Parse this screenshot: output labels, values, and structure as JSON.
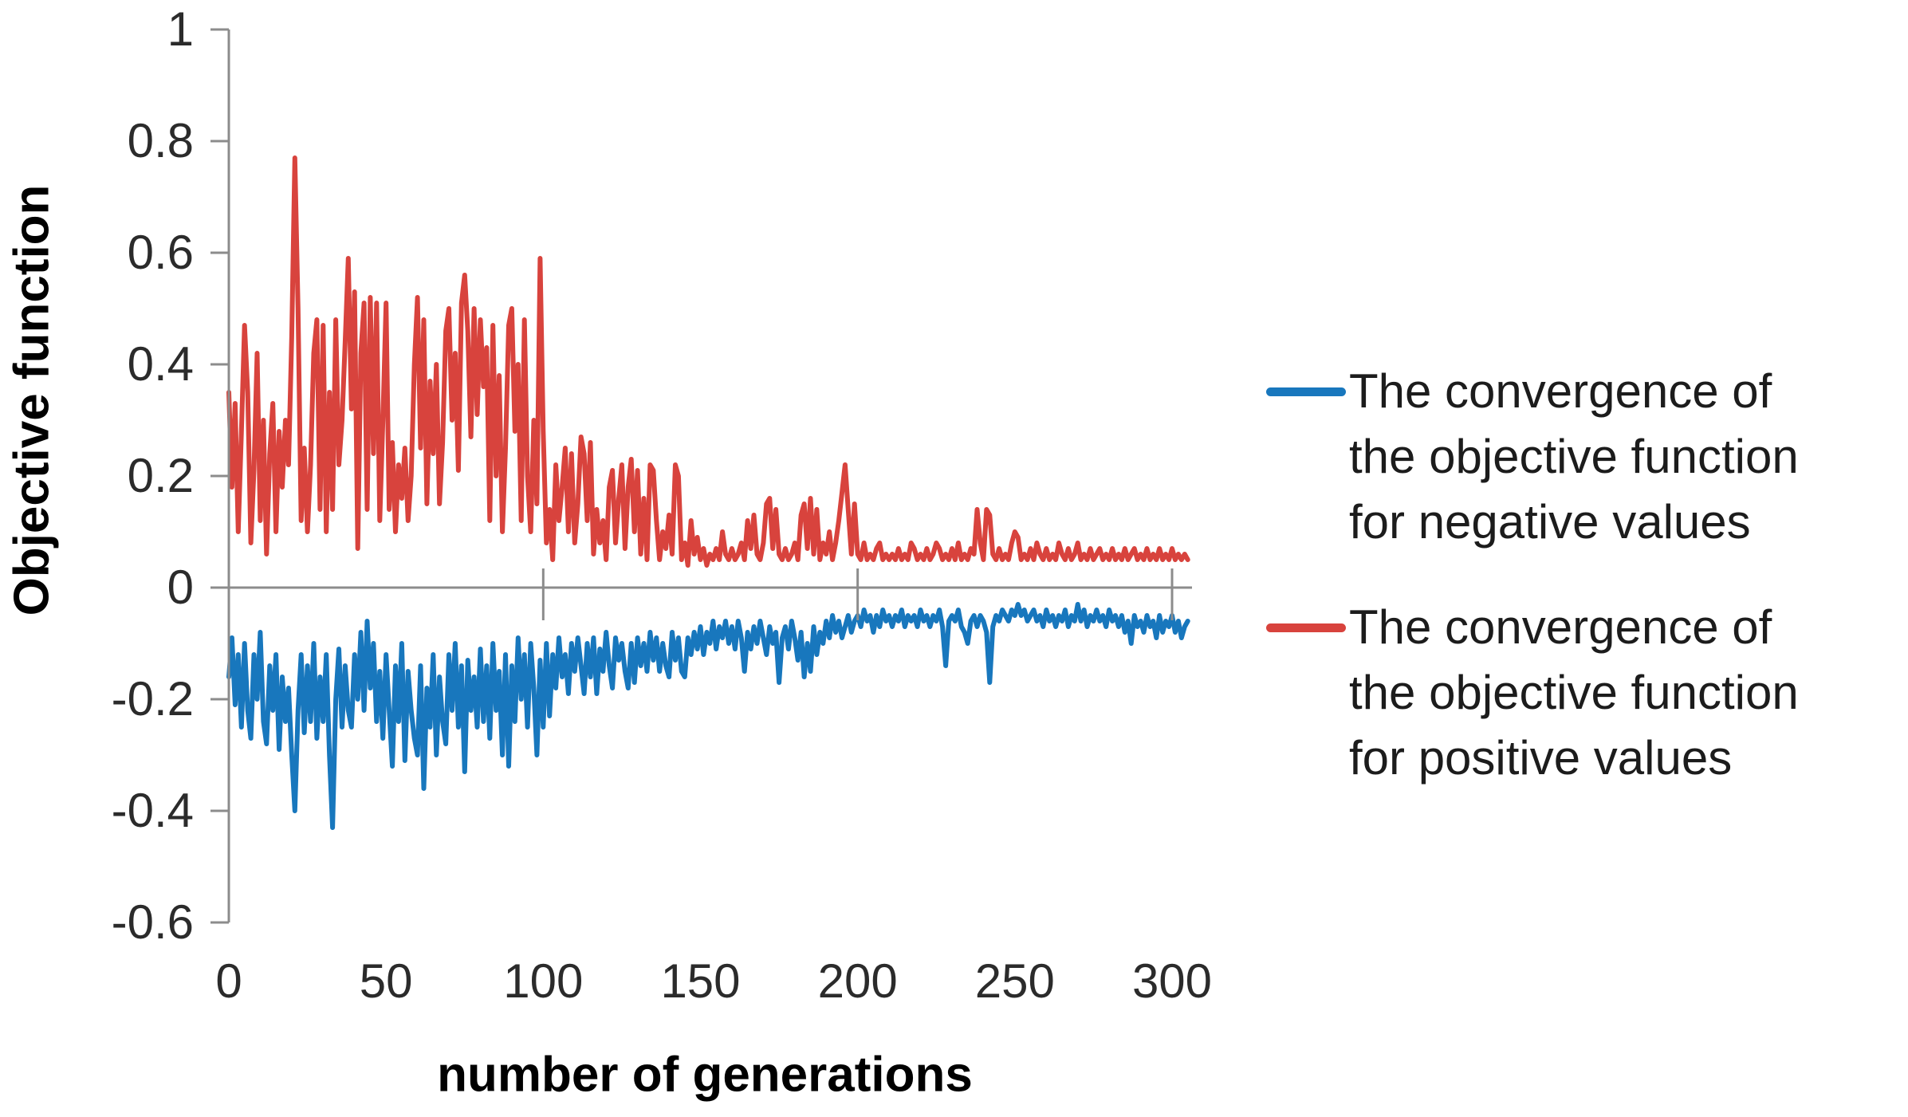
{
  "chart_data": {
    "type": "line",
    "title": "",
    "xlabel": "number of generations",
    "ylabel": "Objective function",
    "xlim": [
      0,
      305
    ],
    "ylim": [
      -0.6,
      1
    ],
    "x_start": 0,
    "x_step": 1,
    "x_ticks": [
      0,
      50,
      100,
      150,
      200,
      250,
      300
    ],
    "y_ticks": [
      1,
      0.8,
      0.6,
      0.4,
      0.2,
      0,
      -0.2,
      -0.4,
      -0.6
    ],
    "grid": false,
    "legend_position": "right",
    "series": [
      {
        "name": "The convergence of the objective function for negative values",
        "color": "#1877BD",
        "values": [
          -0.16,
          -0.09,
          -0.21,
          -0.12,
          -0.25,
          -0.1,
          -0.22,
          -0.27,
          -0.12,
          -0.2,
          -0.08,
          -0.24,
          -0.28,
          -0.14,
          -0.22,
          -0.12,
          -0.29,
          -0.16,
          -0.24,
          -0.18,
          -0.3,
          -0.4,
          -0.22,
          -0.12,
          -0.26,
          -0.14,
          -0.24,
          -0.1,
          -0.27,
          -0.16,
          -0.24,
          -0.12,
          -0.3,
          -0.43,
          -0.2,
          -0.11,
          -0.25,
          -0.14,
          -0.22,
          -0.25,
          -0.12,
          -0.2,
          -0.08,
          -0.22,
          -0.06,
          -0.18,
          -0.1,
          -0.24,
          -0.15,
          -0.27,
          -0.12,
          -0.22,
          -0.32,
          -0.14,
          -0.24,
          -0.1,
          -0.31,
          -0.15,
          -0.22,
          -0.27,
          -0.3,
          -0.14,
          -0.36,
          -0.18,
          -0.25,
          -0.12,
          -0.3,
          -0.16,
          -0.24,
          -0.28,
          -0.12,
          -0.22,
          -0.1,
          -0.25,
          -0.14,
          -0.33,
          -0.13,
          -0.22,
          -0.16,
          -0.25,
          -0.11,
          -0.24,
          -0.14,
          -0.27,
          -0.1,
          -0.22,
          -0.15,
          -0.3,
          -0.12,
          -0.32,
          -0.14,
          -0.24,
          -0.09,
          -0.2,
          -0.12,
          -0.25,
          -0.1,
          -0.18,
          -0.3,
          -0.13,
          -0.25,
          -0.1,
          -0.23,
          -0.12,
          -0.18,
          -0.09,
          -0.16,
          -0.12,
          -0.19,
          -0.1,
          -0.15,
          -0.09,
          -0.14,
          -0.19,
          -0.1,
          -0.16,
          -0.09,
          -0.19,
          -0.11,
          -0.15,
          -0.08,
          -0.14,
          -0.18,
          -0.09,
          -0.13,
          -0.1,
          -0.15,
          -0.18,
          -0.1,
          -0.17,
          -0.09,
          -0.14,
          -0.1,
          -0.15,
          -0.08,
          -0.13,
          -0.09,
          -0.15,
          -0.1,
          -0.14,
          -0.16,
          -0.08,
          -0.13,
          -0.09,
          -0.15,
          -0.16,
          -0.09,
          -0.12,
          -0.08,
          -0.11,
          -0.07,
          -0.12,
          -0.08,
          -0.1,
          -0.06,
          -0.11,
          -0.07,
          -0.09,
          -0.06,
          -0.1,
          -0.07,
          -0.11,
          -0.06,
          -0.09,
          -0.15,
          -0.08,
          -0.11,
          -0.07,
          -0.1,
          -0.06,
          -0.09,
          -0.12,
          -0.07,
          -0.1,
          -0.08,
          -0.17,
          -0.09,
          -0.07,
          -0.11,
          -0.06,
          -0.09,
          -0.13,
          -0.08,
          -0.16,
          -0.1,
          -0.15,
          -0.07,
          -0.12,
          -0.08,
          -0.1,
          -0.06,
          -0.09,
          -0.05,
          -0.08,
          -0.06,
          -0.09,
          -0.07,
          -0.05,
          -0.08,
          -0.06,
          -0.05,
          -0.07,
          -0.04,
          -0.06,
          -0.05,
          -0.08,
          -0.05,
          -0.07,
          -0.04,
          -0.06,
          -0.05,
          -0.07,
          -0.05,
          -0.06,
          -0.04,
          -0.07,
          -0.05,
          -0.06,
          -0.05,
          -0.07,
          -0.04,
          -0.06,
          -0.05,
          -0.07,
          -0.05,
          -0.06,
          -0.04,
          -0.07,
          -0.14,
          -0.06,
          -0.05,
          -0.06,
          -0.04,
          -0.07,
          -0.08,
          -0.1,
          -0.06,
          -0.05,
          -0.07,
          -0.05,
          -0.06,
          -0.08,
          -0.17,
          -0.07,
          -0.05,
          -0.06,
          -0.04,
          -0.05,
          -0.06,
          -0.04,
          -0.05,
          -0.03,
          -0.05,
          -0.04,
          -0.06,
          -0.05,
          -0.04,
          -0.06,
          -0.05,
          -0.07,
          -0.04,
          -0.06,
          -0.05,
          -0.07,
          -0.05,
          -0.06,
          -0.04,
          -0.07,
          -0.05,
          -0.06,
          -0.03,
          -0.06,
          -0.04,
          -0.07,
          -0.05,
          -0.06,
          -0.04,
          -0.06,
          -0.05,
          -0.07,
          -0.04,
          -0.06,
          -0.05,
          -0.07,
          -0.05,
          -0.08,
          -0.06,
          -0.1,
          -0.05,
          -0.07,
          -0.06,
          -0.08,
          -0.05,
          -0.07,
          -0.06,
          -0.09,
          -0.05,
          -0.08,
          -0.06,
          -0.07,
          -0.05,
          -0.08,
          -0.06,
          -0.09,
          -0.07,
          -0.06
        ]
      },
      {
        "name": "The convergence of the objective function for positive values",
        "color": "#D8433D",
        "values": [
          0.35,
          0.18,
          0.33,
          0.1,
          0.28,
          0.47,
          0.35,
          0.08,
          0.21,
          0.42,
          0.12,
          0.3,
          0.06,
          0.24,
          0.33,
          0.1,
          0.28,
          0.18,
          0.3,
          0.22,
          0.45,
          0.77,
          0.5,
          0.12,
          0.25,
          0.1,
          0.22,
          0.42,
          0.48,
          0.14,
          0.47,
          0.1,
          0.35,
          0.14,
          0.48,
          0.22,
          0.3,
          0.44,
          0.59,
          0.32,
          0.53,
          0.07,
          0.42,
          0.51,
          0.14,
          0.52,
          0.24,
          0.51,
          0.12,
          0.3,
          0.51,
          0.14,
          0.26,
          0.1,
          0.22,
          0.16,
          0.25,
          0.12,
          0.2,
          0.4,
          0.52,
          0.25,
          0.48,
          0.15,
          0.37,
          0.24,
          0.4,
          0.15,
          0.26,
          0.46,
          0.5,
          0.3,
          0.42,
          0.21,
          0.51,
          0.56,
          0.46,
          0.27,
          0.5,
          0.31,
          0.48,
          0.36,
          0.43,
          0.12,
          0.47,
          0.2,
          0.38,
          0.1,
          0.25,
          0.47,
          0.5,
          0.28,
          0.4,
          0.12,
          0.48,
          0.2,
          0.1,
          0.3,
          0.15,
          0.59,
          0.28,
          0.08,
          0.14,
          0.05,
          0.22,
          0.12,
          0.18,
          0.25,
          0.1,
          0.24,
          0.08,
          0.15,
          0.27,
          0.24,
          0.12,
          0.26,
          0.06,
          0.14,
          0.08,
          0.12,
          0.05,
          0.18,
          0.21,
          0.08,
          0.16,
          0.22,
          0.07,
          0.18,
          0.23,
          0.1,
          0.21,
          0.06,
          0.16,
          0.05,
          0.22,
          0.21,
          0.12,
          0.05,
          0.1,
          0.07,
          0.13,
          0.06,
          0.22,
          0.2,
          0.05,
          0.08,
          0.04,
          0.12,
          0.06,
          0.09,
          0.05,
          0.07,
          0.04,
          0.06,
          0.05,
          0.07,
          0.05,
          0.1,
          0.06,
          0.05,
          0.07,
          0.05,
          0.06,
          0.08,
          0.05,
          0.12,
          0.07,
          0.13,
          0.06,
          0.05,
          0.08,
          0.15,
          0.16,
          0.07,
          0.14,
          0.06,
          0.05,
          0.07,
          0.05,
          0.06,
          0.08,
          0.05,
          0.13,
          0.15,
          0.07,
          0.16,
          0.06,
          0.14,
          0.05,
          0.08,
          0.06,
          0.1,
          0.05,
          0.08,
          0.12,
          0.17,
          0.22,
          0.14,
          0.06,
          0.15,
          0.06,
          0.05,
          0.08,
          0.05,
          0.06,
          0.05,
          0.07,
          0.08,
          0.05,
          0.06,
          0.05,
          0.06,
          0.05,
          0.07,
          0.05,
          0.06,
          0.05,
          0.08,
          0.07,
          0.05,
          0.06,
          0.05,
          0.07,
          0.05,
          0.06,
          0.08,
          0.07,
          0.05,
          0.06,
          0.05,
          0.07,
          0.05,
          0.08,
          0.05,
          0.06,
          0.05,
          0.07,
          0.06,
          0.14,
          0.08,
          0.05,
          0.14,
          0.13,
          0.06,
          0.05,
          0.07,
          0.05,
          0.06,
          0.05,
          0.08,
          0.1,
          0.09,
          0.05,
          0.06,
          0.05,
          0.07,
          0.05,
          0.08,
          0.06,
          0.05,
          0.07,
          0.05,
          0.06,
          0.05,
          0.08,
          0.06,
          0.05,
          0.07,
          0.05,
          0.06,
          0.08,
          0.05,
          0.06,
          0.05,
          0.07,
          0.05,
          0.06,
          0.07,
          0.05,
          0.06,
          0.05,
          0.07,
          0.05,
          0.06,
          0.05,
          0.07,
          0.05,
          0.06,
          0.07,
          0.05,
          0.06,
          0.05,
          0.07,
          0.05,
          0.06,
          0.05,
          0.07,
          0.05,
          0.06,
          0.05,
          0.07,
          0.05,
          0.06,
          0.05,
          0.06,
          0.05
        ]
      }
    ]
  },
  "axes": {
    "y_title": "Objective function",
    "x_title": "number of generations",
    "y_tick_labels": [
      "1",
      "0.8",
      "0.6",
      "0.4",
      "0.2",
      "0",
      "-0.2",
      "-0.4",
      "-0.6"
    ],
    "x_tick_labels": [
      "0",
      "50",
      "100",
      "150",
      "200",
      "250",
      "300"
    ]
  },
  "legend": {
    "entries": [
      {
        "color": "#1877BD",
        "lines": [
          "The convergence of",
          "the objective function",
          "for negative values"
        ]
      },
      {
        "color": "#D8433D",
        "lines": [
          "The convergence of",
          "the objective function",
          "for positive values"
        ]
      }
    ]
  },
  "colors": {
    "series_negative_blue": "#1877BD",
    "series_positive_red": "#D8433D",
    "axis_gray": "#8C8C8C",
    "tick_text": "#2b2b2b",
    "title_text": "#000000"
  }
}
